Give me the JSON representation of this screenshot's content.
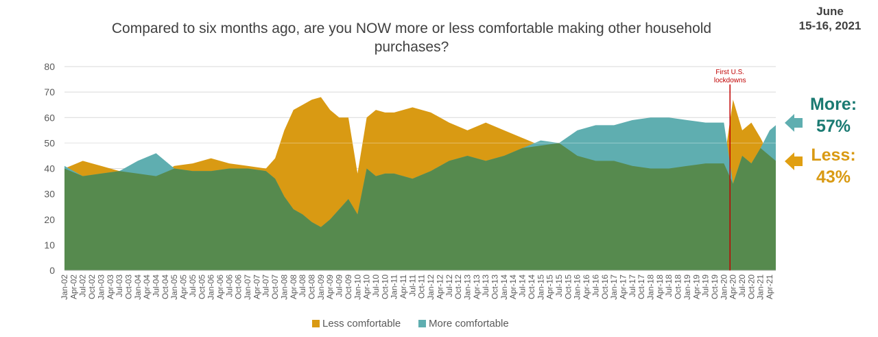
{
  "title": "Compared to six months ago, are you NOW more or less comfortable making other household purchases?",
  "date_line1": "June",
  "date_line2": "15-16, 2021",
  "callouts": {
    "more_label": "More:",
    "more_value": "57%",
    "less_label": "Less:",
    "less_value": "43%"
  },
  "colors": {
    "more": "#5faeb0",
    "less": "#d99a13",
    "overlap": "#568a4e",
    "marker": "#c00000",
    "grid": "#d9d9d9"
  },
  "legend": {
    "less": "Less comfortable",
    "more": "More comfortable"
  },
  "chart_data": {
    "type": "area",
    "title": "Compared to six months ago, are you NOW more or less comfortable making other household purchases?",
    "ylim": [
      0,
      80
    ],
    "yticks": [
      0,
      10,
      20,
      30,
      40,
      50,
      60,
      70,
      80
    ],
    "grid": true,
    "legend_position": "bottom",
    "x_start": "Jan-02",
    "x_end": "Jun-21",
    "xtick_labels": [
      "Jan-02",
      "Apr-02",
      "Jul-02",
      "Oct-02",
      "Jan-03",
      "Apr-03",
      "Jul-03",
      "Oct-03",
      "Jan-04",
      "Apr-04",
      "Jul-04",
      "Oct-04",
      "Jan-05",
      "Apr-05",
      "Jul-05",
      "Oct-05",
      "Jan-06",
      "Apr-06",
      "Jul-06",
      "Oct-06",
      "Jan-07",
      "Apr-07",
      "Jul-07",
      "Oct-07",
      "Jan-08",
      "Apr-08",
      "Jul-08",
      "Oct-08",
      "Jan-09",
      "Apr-09",
      "Jul-09",
      "Oct-09",
      "Jan-10",
      "Apr-10",
      "Jul-10",
      "Oct-10",
      "Jan-11",
      "Apr-11",
      "Jul-11",
      "Oct-11",
      "Jan-12",
      "Apr-12",
      "Jul-12",
      "Oct-12",
      "Jan-13",
      "Apr-13",
      "Jul-13",
      "Oct-13",
      "Jan-14",
      "Apr-14",
      "Jul-14",
      "Oct-14",
      "Jan-15",
      "Apr-15",
      "Jul-15",
      "Oct-15",
      "Jan-16",
      "Apr-16",
      "Jul-16",
      "Oct-16",
      "Jan-17",
      "Apr-17",
      "Jul-17",
      "Oct-17",
      "Jan-18",
      "Apr-18",
      "Jul-18",
      "Oct-18",
      "Jan-19",
      "Apr-19",
      "Jul-19",
      "Oct-19",
      "Jan-20",
      "Apr-20",
      "Jul-20",
      "Oct-20",
      "Jan-21",
      "Apr-21"
    ],
    "annotation": {
      "label_line1": "First U.S.",
      "label_line2": "lockdowns",
      "x": "Mar-20"
    },
    "series": [
      {
        "name": "Less comfortable",
        "x": [
          "Jan-02",
          "Jul-02",
          "Jan-03",
          "Jul-03",
          "Jan-04",
          "Jul-04",
          "Jan-05",
          "Jul-05",
          "Jan-06",
          "Jul-06",
          "Jan-07",
          "Jul-07",
          "Oct-07",
          "Jan-08",
          "Apr-08",
          "Jul-08",
          "Oct-08",
          "Jan-09",
          "Apr-09",
          "Jul-09",
          "Oct-09",
          "Jan-10",
          "Apr-10",
          "Jul-10",
          "Oct-10",
          "Jan-11",
          "Jul-11",
          "Jan-12",
          "Jul-12",
          "Jan-13",
          "Jul-13",
          "Jan-14",
          "Jul-14",
          "Jan-15",
          "Jul-15",
          "Jan-16",
          "Jul-16",
          "Jan-17",
          "Jul-17",
          "Jan-18",
          "Jul-18",
          "Jan-19",
          "Jul-19",
          "Jan-20",
          "Apr-20",
          "Jul-20",
          "Oct-20",
          "Jan-21",
          "Apr-21",
          "Jun-21"
        ],
        "values": [
          40,
          43,
          41,
          39,
          38,
          37,
          41,
          42,
          44,
          42,
          41,
          40,
          44,
          55,
          63,
          65,
          67,
          68,
          63,
          60,
          60,
          38,
          60,
          63,
          62,
          62,
          64,
          62,
          58,
          55,
          58,
          55,
          52,
          49,
          50,
          45,
          43,
          43,
          41,
          40,
          40,
          41,
          42,
          42,
          67,
          55,
          58,
          52,
          45,
          43
        ]
      },
      {
        "name": "More comfortable",
        "x": [
          "Jan-02",
          "Jul-02",
          "Jan-03",
          "Jul-03",
          "Jan-04",
          "Jul-04",
          "Jan-05",
          "Jul-05",
          "Jan-06",
          "Jul-06",
          "Jan-07",
          "Jul-07",
          "Oct-07",
          "Jan-08",
          "Apr-08",
          "Jul-08",
          "Oct-08",
          "Jan-09",
          "Apr-09",
          "Jul-09",
          "Oct-09",
          "Jan-10",
          "Apr-10",
          "Jul-10",
          "Oct-10",
          "Jan-11",
          "Jul-11",
          "Jan-12",
          "Jul-12",
          "Jan-13",
          "Jul-13",
          "Jan-14",
          "Jul-14",
          "Jan-15",
          "Jul-15",
          "Jan-16",
          "Jul-16",
          "Jan-17",
          "Jul-17",
          "Jan-18",
          "Jul-18",
          "Jan-19",
          "Jul-19",
          "Jan-20",
          "Apr-20",
          "Jul-20",
          "Oct-20",
          "Jan-21",
          "Apr-21",
          "Jun-21"
        ],
        "values": [
          41,
          37,
          38,
          39,
          43,
          46,
          40,
          39,
          39,
          40,
          40,
          39,
          36,
          29,
          24,
          22,
          19,
          17,
          20,
          24,
          28,
          22,
          40,
          37,
          38,
          38,
          36,
          39,
          43,
          45,
          43,
          45,
          48,
          51,
          50,
          55,
          57,
          57,
          59,
          60,
          60,
          59,
          58,
          58,
          34,
          45,
          42,
          48,
          55,
          57
        ]
      }
    ]
  }
}
